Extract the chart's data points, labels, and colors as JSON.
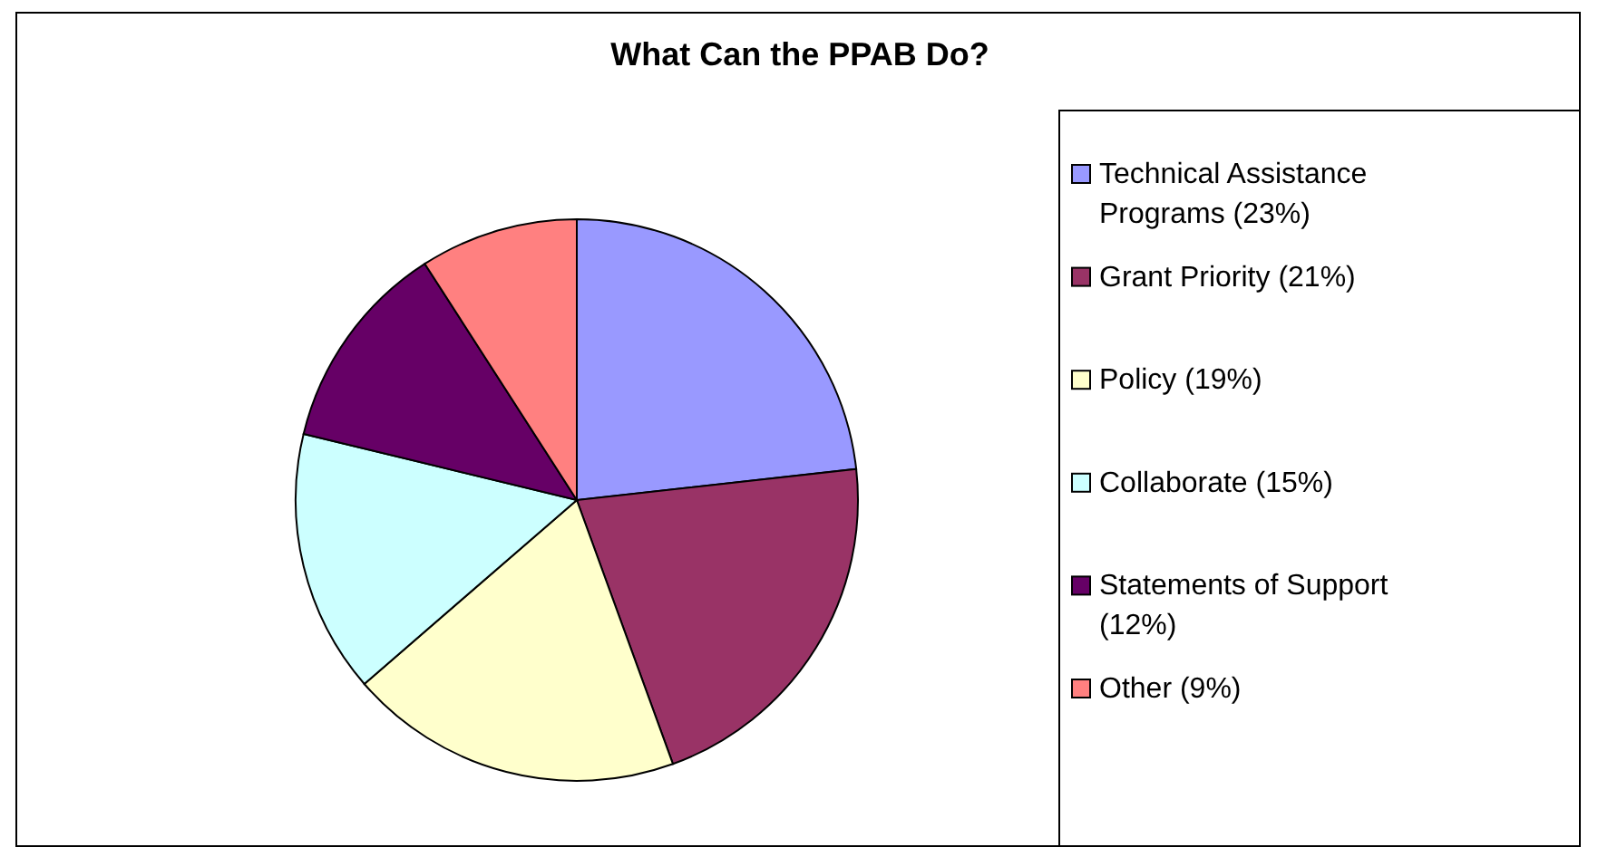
{
  "chart_data": {
    "type": "pie",
    "title": "What Can the PPAB Do?",
    "categories": [
      "Technical Assistance Programs (23%)",
      "Grant Priority (21%)",
      "Policy (19%)",
      "Collaborate (15%)",
      "Statements of Support (12%)",
      "Other (9%)"
    ],
    "values": [
      23,
      21,
      19,
      15,
      12,
      9
    ],
    "colors": [
      "#9999ff",
      "#993366",
      "#ffffcc",
      "#ccffff",
      "#660066",
      "#ff8080"
    ],
    "legend": "right"
  }
}
